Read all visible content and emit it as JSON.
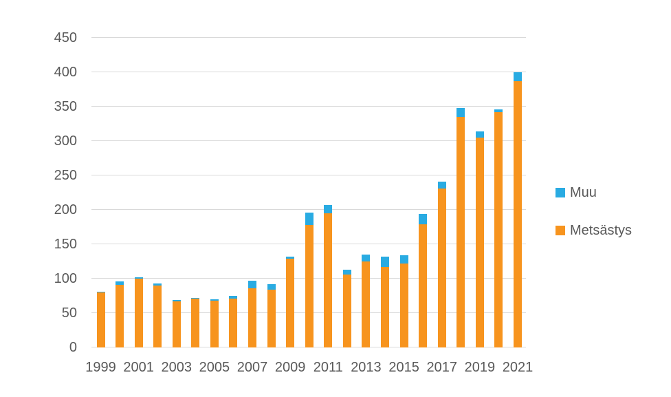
{
  "chart_data": {
    "type": "bar",
    "stacked": true,
    "title": "",
    "xlabel": "",
    "ylabel": "",
    "categories": [
      "1999",
      "2000",
      "2001",
      "2002",
      "2003",
      "2004",
      "2005",
      "2006",
      "2007",
      "2008",
      "2009",
      "2010",
      "2011",
      "2012",
      "2013",
      "2014",
      "2015",
      "2016",
      "2017",
      "2018",
      "2019",
      "2020",
      "2021"
    ],
    "series": [
      {
        "name": "Metsästys",
        "color": "#F7941E",
        "values": [
          80,
          91,
          100,
          90,
          67,
          71,
          68,
          71,
          86,
          84,
          129,
          178,
          195,
          106,
          125,
          117,
          122,
          179,
          231,
          335,
          305,
          342,
          387
        ]
      },
      {
        "name": "Muu",
        "color": "#29ABE2",
        "values": [
          1,
          5,
          2,
          3,
          2,
          1,
          2,
          4,
          11,
          8,
          3,
          18,
          12,
          7,
          10,
          15,
          12,
          15,
          10,
          13,
          9,
          4,
          13
        ]
      }
    ],
    "ylim": [
      0,
      450
    ],
    "yticks": [
      0,
      50,
      100,
      150,
      200,
      250,
      300,
      350,
      400,
      450
    ],
    "xtick_labels": [
      "1999",
      "2001",
      "2003",
      "2005",
      "2007",
      "2009",
      "2011",
      "2013",
      "2015",
      "2017",
      "2019",
      "2021"
    ],
    "grid": true,
    "legend_position": "right",
    "legend_entries": [
      "Muu",
      "Metsästys"
    ],
    "colors": {
      "muu": "#29ABE2",
      "metsastys": "#F7941E",
      "gridline": "#D9D9D9",
      "tick_text": "#595959",
      "background": "#FFFFFF"
    }
  }
}
